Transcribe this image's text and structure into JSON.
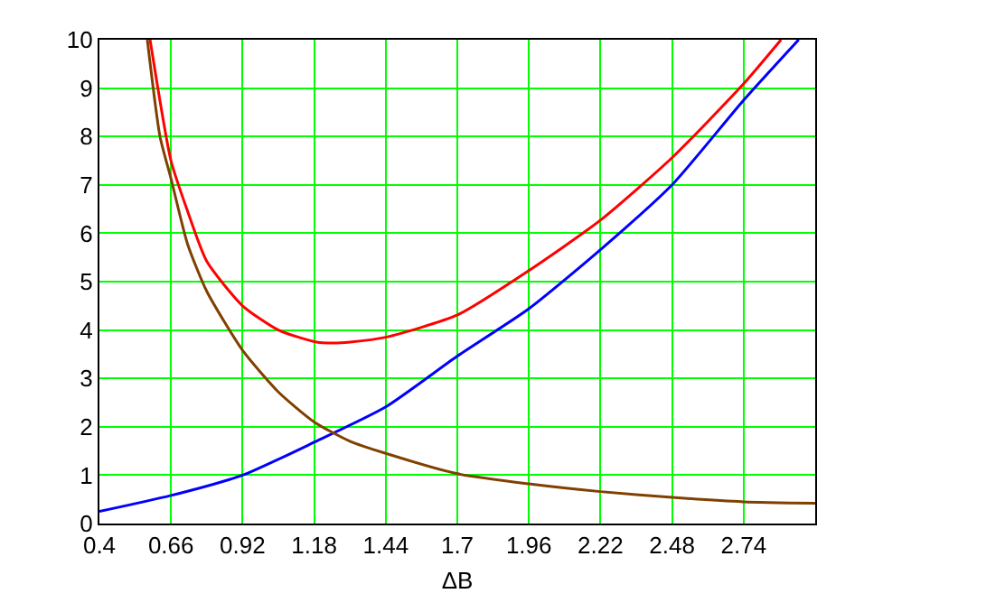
{
  "chart_data": {
    "type": "line",
    "xlabel": "ΔB",
    "xlim": [
      0.4,
      3.0
    ],
    "xticks": [
      0.4,
      0.66,
      0.92,
      1.18,
      1.44,
      1.7,
      1.96,
      2.22,
      2.48,
      2.74
    ],
    "ylim": [
      0,
      10
    ],
    "yticks": [
      0,
      1,
      2,
      3,
      4,
      5,
      6,
      7,
      8,
      9,
      10
    ],
    "grid": true,
    "marker": "none",
    "line_style": "solid",
    "series": [
      {
        "color": "#0000ff",
        "x": [
          0.4,
          0.66,
          0.92,
          1.18,
          1.44,
          1.7,
          1.96,
          2.22,
          2.48,
          2.74,
          2.94
        ],
        "values": [
          0.25,
          0.58,
          1.0,
          1.68,
          2.41,
          3.46,
          4.44,
          5.66,
          7.0,
          8.75,
          10
        ]
      },
      {
        "color": "#804000",
        "x": [
          0.574,
          0.62,
          0.66,
          0.72,
          0.79,
          0.92,
          1.05,
          1.18,
          1.31,
          1.44,
          1.7,
          1.96,
          2.22,
          2.48,
          2.74,
          3.0
        ],
        "values": [
          10,
          8.0,
          7.13,
          5.78,
          4.8,
          3.58,
          2.72,
          2.1,
          1.7,
          1.45,
          1.03,
          0.82,
          0.66,
          0.54,
          0.45,
          0.42
        ]
      },
      {
        "color": "#ff0000",
        "x": [
          0.584,
          0.66,
          0.72,
          0.79,
          0.92,
          1.05,
          1.18,
          1.25,
          1.31,
          1.44,
          1.7,
          1.96,
          2.22,
          2.48,
          2.74,
          2.876
        ],
        "values": [
          10,
          7.5,
          6.46,
          5.42,
          4.5,
          4.0,
          3.76,
          3.73,
          3.75,
          3.85,
          4.31,
          5.23,
          6.27,
          7.56,
          9.09,
          10
        ]
      }
    ]
  }
}
